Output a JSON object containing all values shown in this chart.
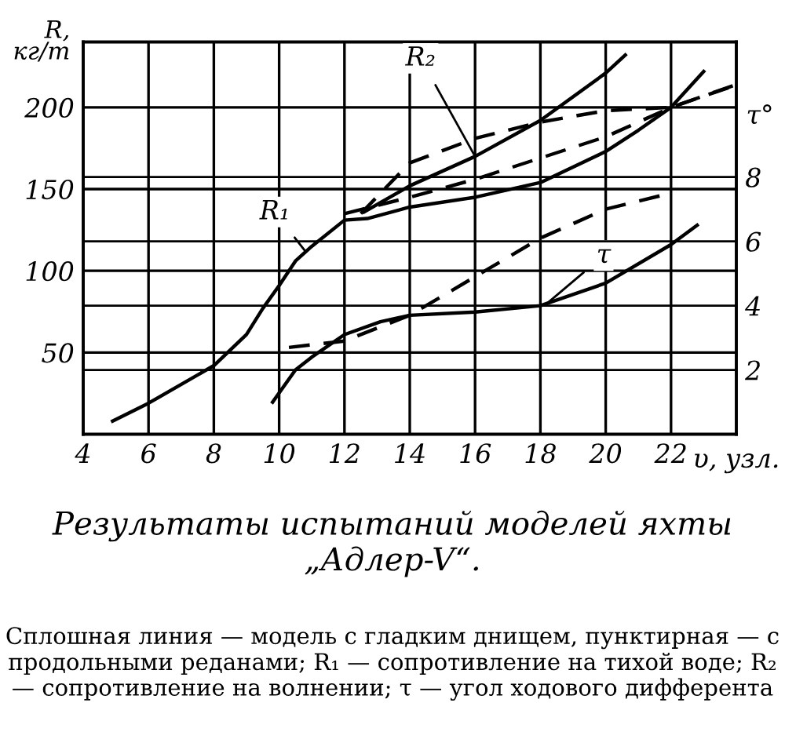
{
  "chart_data": {
    "type": "line",
    "title": "Результаты испытаний моделей яхты „Адлер-V“.",
    "xlabel": "υ, узл.",
    "ylabel": "R,\nкг/т",
    "y2label": "τ°",
    "xlim": [
      4,
      24
    ],
    "xticks": [
      4,
      6,
      8,
      10,
      12,
      14,
      16,
      18,
      20,
      22
    ],
    "ylim": [
      0,
      240
    ],
    "yticks": [
      50,
      100,
      150,
      200
    ],
    "y2lim": [
      0,
      12.2
    ],
    "y2ticks": [
      2,
      4,
      6,
      8
    ],
    "grid": true,
    "series": [
      {
        "color": "#000000",
        "line_style": "solid",
        "x": [
          4.9,
          6,
          8,
          9,
          9.5,
          10,
          10.5,
          11,
          12,
          12.7,
          14,
          16,
          18,
          20,
          21,
          22,
          23
        ],
        "values": [
          8,
          19,
          42,
          61,
          77,
          91,
          106,
          115,
          131,
          132,
          139,
          145,
          154,
          173,
          186,
          200,
          222
        ]
      },
      {
        "color": "#000000",
        "line_style": "dashed",
        "x": [
          12,
          13,
          14,
          16,
          18,
          20,
          22,
          23.9
        ],
        "values": [
          135,
          140,
          145,
          156,
          169,
          182,
          200,
          213
        ]
      },
      {
        "color": "#000000",
        "line_style": "solid",
        "x": [
          12.6,
          14,
          16,
          18,
          20,
          20.6
        ],
        "values": [
          136,
          152,
          170,
          192,
          221,
          232
        ]
      },
      {
        "color": "#000000",
        "line_style": "dashed",
        "x": [
          12.5,
          14,
          16,
          18,
          20,
          22,
          24
        ],
        "values": [
          135,
          166,
          181,
          191,
          198,
          200,
          214
        ]
      },
      {
        "color": "#000000",
        "line_style": "solid",
        "axis": "y2",
        "x": [
          9.8,
          10.5,
          11,
          12,
          13.1,
          14,
          16,
          18,
          20,
          22,
          22.8
        ],
        "values": [
          1.0,
          2.0,
          2.4,
          3.1,
          3.5,
          3.7,
          3.8,
          4.0,
          4.7,
          5.9,
          6.5
        ]
      },
      {
        "color": "#000000",
        "line_style": "dashed",
        "axis": "y2",
        "x": [
          10.3,
          12,
          14,
          16,
          18,
          20,
          22
        ],
        "values": [
          2.7,
          2.9,
          3.7,
          4.9,
          6.1,
          7.0,
          7.5
        ]
      }
    ],
    "annotations": [
      {
        "text": "R₁",
        "x": 10.8,
        "y": 112
      },
      {
        "text": "R₂",
        "x": 16,
        "y": 170
      },
      {
        "text": "τ",
        "x": 18.2,
        "y": 80
      },
      "Сплошная линия — модель с гладким днищем, пунктирная — с продольными реданами; R₁ — сопротивление на тихой воде; R₂ — сопротивление на волнении; τ — угол ходового дифферента"
    ]
  }
}
